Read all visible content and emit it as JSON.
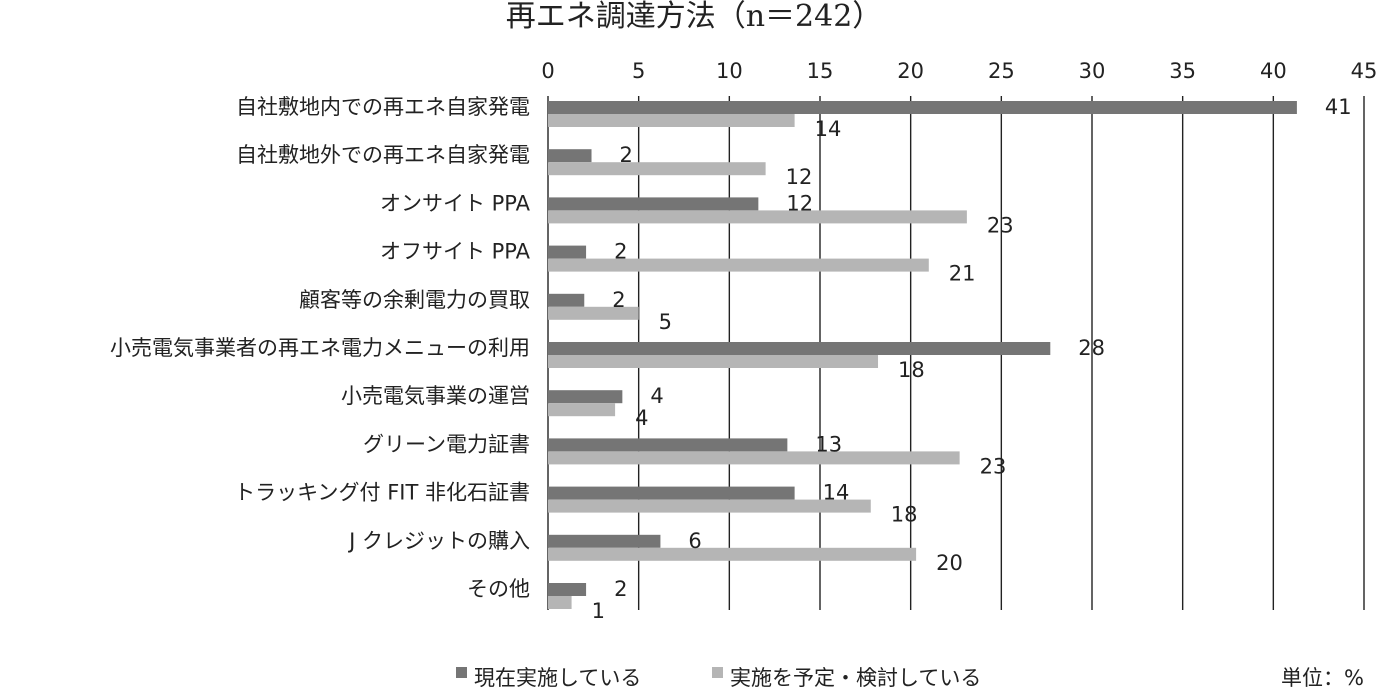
{
  "chart_data": {
    "type": "bar",
    "orientation": "horizontal",
    "title": "再エネ調達方法（n＝242）",
    "unit_note": "単位：%",
    "xlim": [
      0,
      45
    ],
    "ticks": [
      "0",
      "5",
      "10",
      "15",
      "20",
      "25",
      "30",
      "35",
      "40",
      "45"
    ],
    "tick_values": [
      0,
      5,
      10,
      15,
      20,
      25,
      30,
      35,
      40,
      45
    ],
    "grid": true,
    "legend_position": "bottom",
    "categories": [
      "自社敷地内での再エネ自家発電",
      "自社敷地外での再エネ自家発電",
      "オンサイト PPA",
      "オフサイト PPA",
      "顧客等の余剰電力の買取",
      "小売電気事業者の再エネ電力メニューの利用",
      "小売電気事業の運営",
      "グリーン電力証書",
      "トラッキング付 FIT 非化石証書",
      "J クレジットの購入",
      "その他"
    ],
    "series": [
      {
        "name": "現在実施している",
        "color": "#757575",
        "values": [
          41.3,
          2.4,
          11.6,
          2.1,
          2.0,
          27.7,
          4.1,
          13.2,
          13.6,
          6.2,
          2.1
        ],
        "labels": [
          "41",
          "2",
          "12",
          "2",
          "2",
          "28",
          "4",
          "13",
          "14",
          "6",
          "2"
        ]
      },
      {
        "name": "実施を予定・検討している",
        "color": "#b5b5b5",
        "values": [
          13.6,
          12.0,
          23.1,
          21.0,
          5.0,
          18.2,
          3.7,
          22.7,
          17.8,
          20.3,
          1.3
        ],
        "labels": [
          "14",
          "12",
          "23",
          "21",
          "5",
          "18",
          "4",
          "23",
          "18",
          "20",
          "1"
        ]
      }
    ]
  }
}
